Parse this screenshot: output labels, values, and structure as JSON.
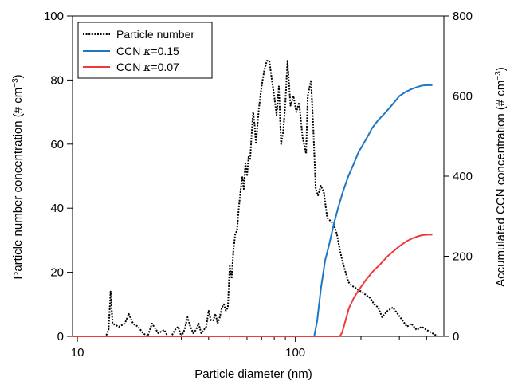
{
  "chart_data": {
    "type": "line",
    "title": "",
    "xlabel": "Particle diameter (nm)",
    "ylabel_left": "Particle number concentration (# cm⁻³)",
    "ylabel_right": "Accumulated CCN concentration (# cm⁻³)",
    "xscale": "log",
    "xlim": [
      9.5,
      480
    ],
    "ylim_left": [
      0,
      100
    ],
    "ylim_right": [
      0,
      800
    ],
    "xticks": [
      10,
      100
    ],
    "xtick_labels": [
      "10",
      "100"
    ],
    "yticks_left": [
      0,
      20,
      40,
      60,
      80,
      100
    ],
    "ytick_labels_left": [
      "0",
      "20",
      "40",
      "60",
      "80",
      "100"
    ],
    "yticks_right": [
      0,
      200,
      400,
      600,
      800
    ],
    "ytick_labels_right": [
      "0",
      "200",
      "400",
      "600",
      "800"
    ],
    "grid": false,
    "legend_position": "top-left",
    "series": [
      {
        "name": "Particle number",
        "axis": "left",
        "color": "#000000",
        "style": "dotted",
        "points": [
          [
            9.5,
            0
          ],
          [
            13.5,
            0
          ],
          [
            13.9,
            2
          ],
          [
            14.2,
            14
          ],
          [
            14.5,
            4
          ],
          [
            15.5,
            3
          ],
          [
            16.5,
            4
          ],
          [
            17.2,
            7
          ],
          [
            18,
            4
          ],
          [
            19,
            3
          ],
          [
            20,
            1
          ],
          [
            21,
            0
          ],
          [
            22,
            4
          ],
          [
            23.5,
            1
          ],
          [
            25,
            2
          ],
          [
            26,
            0
          ],
          [
            27,
            0
          ],
          [
            28,
            2
          ],
          [
            29,
            3
          ],
          [
            30,
            0
          ],
          [
            31,
            2
          ],
          [
            32,
            6
          ],
          [
            33,
            3
          ],
          [
            34,
            1
          ],
          [
            35,
            2
          ],
          [
            36,
            4
          ],
          [
            37,
            1
          ],
          [
            38,
            2
          ],
          [
            39,
            3
          ],
          [
            40,
            8
          ],
          [
            41,
            5
          ],
          [
            42,
            5
          ],
          [
            43,
            7
          ],
          [
            44,
            4
          ],
          [
            45,
            6
          ],
          [
            46,
            9
          ],
          [
            47,
            10
          ],
          [
            48,
            8
          ],
          [
            49,
            9
          ],
          [
            50,
            22
          ],
          [
            51,
            18
          ],
          [
            52,
            27
          ],
          [
            53,
            32
          ],
          [
            54,
            33
          ],
          [
            55,
            40
          ],
          [
            56,
            45
          ],
          [
            57,
            50
          ],
          [
            58,
            46
          ],
          [
            59,
            54
          ],
          [
            60,
            50
          ],
          [
            61,
            56
          ],
          [
            62,
            55
          ],
          [
            63,
            63
          ],
          [
            64,
            70
          ],
          [
            65,
            66
          ],
          [
            66,
            60
          ],
          [
            67,
            66
          ],
          [
            68,
            71
          ],
          [
            70,
            78
          ],
          [
            72,
            83
          ],
          [
            74,
            86
          ],
          [
            76,
            86
          ],
          [
            78,
            80
          ],
          [
            80,
            75
          ],
          [
            82,
            69
          ],
          [
            84,
            78
          ],
          [
            86,
            60
          ],
          [
            88,
            64
          ],
          [
            90,
            73
          ],
          [
            92,
            86
          ],
          [
            95,
            72
          ],
          [
            98,
            75
          ],
          [
            101,
            70
          ],
          [
            104,
            73
          ],
          [
            108,
            62
          ],
          [
            112,
            57
          ],
          [
            114,
            75
          ],
          [
            118,
            80
          ],
          [
            121,
            64
          ],
          [
            124,
            46
          ],
          [
            127,
            44
          ],
          [
            131,
            47
          ],
          [
            135,
            45
          ],
          [
            140,
            37
          ],
          [
            145,
            36
          ],
          [
            150,
            35
          ],
          [
            155,
            32
          ],
          [
            160,
            27
          ],
          [
            165,
            23
          ],
          [
            170,
            20
          ],
          [
            175,
            17
          ],
          [
            180,
            16
          ],
          [
            190,
            15
          ],
          [
            200,
            14
          ],
          [
            210,
            13
          ],
          [
            220,
            12
          ],
          [
            230,
            10
          ],
          [
            240,
            9
          ],
          [
            250,
            6
          ],
          [
            265,
            8
          ],
          [
            280,
            9
          ],
          [
            295,
            7
          ],
          [
            310,
            5
          ],
          [
            325,
            3
          ],
          [
            340,
            4
          ],
          [
            360,
            2
          ],
          [
            380,
            3
          ],
          [
            400,
            2
          ],
          [
            425,
            1
          ],
          [
            450,
            0
          ]
        ]
      },
      {
        "name": "CCN κ=0.15",
        "axis": "right",
        "color": "#1f77c4",
        "style": "solid",
        "points": [
          [
            9.5,
            0
          ],
          [
            122,
            0
          ],
          [
            126,
            40
          ],
          [
            131,
            120
          ],
          [
            137,
            190
          ],
          [
            143,
            230
          ],
          [
            150,
            280
          ],
          [
            157,
            320
          ],
          [
            165,
            360
          ],
          [
            175,
            400
          ],
          [
            185,
            430
          ],
          [
            195,
            460
          ],
          [
            205,
            480
          ],
          [
            215,
            500
          ],
          [
            225,
            520
          ],
          [
            240,
            540
          ],
          [
            255,
            555
          ],
          [
            270,
            570
          ],
          [
            285,
            585
          ],
          [
            300,
            600
          ],
          [
            320,
            610
          ],
          [
            340,
            617
          ],
          [
            360,
            622
          ],
          [
            380,
            626
          ],
          [
            400,
            627
          ],
          [
            425,
            627
          ]
        ]
      },
      {
        "name": "CCN κ=0.07",
        "axis": "right",
        "color": "#ee3a3a",
        "style": "solid",
        "points": [
          [
            9.5,
            0
          ],
          [
            160,
            0
          ],
          [
            164,
            10
          ],
          [
            170,
            40
          ],
          [
            176,
            70
          ],
          [
            185,
            95
          ],
          [
            195,
            115
          ],
          [
            210,
            140
          ],
          [
            225,
            160
          ],
          [
            245,
            180
          ],
          [
            265,
            200
          ],
          [
            285,
            215
          ],
          [
            305,
            228
          ],
          [
            325,
            238
          ],
          [
            345,
            245
          ],
          [
            365,
            250
          ],
          [
            385,
            253
          ],
          [
            405,
            254
          ],
          [
            425,
            254
          ]
        ]
      }
    ]
  },
  "legend": {
    "items": [
      {
        "name": "Particle number",
        "prefix": "",
        "suffix": ""
      },
      {
        "name": "CCN κ=0.15",
        "prefix": "CCN ",
        "suffix": "=0.15"
      },
      {
        "name": "CCN κ=0.07",
        "prefix": "CCN ",
        "suffix": "=0.07"
      }
    ],
    "kappa_symbol": "κ"
  },
  "axes": {
    "xlabel": "Particle diameter (nm)",
    "ylabel_left_main": "Particle number concentration (# cm",
    "ylabel_right_main": "Accumulated CCN concentration (# cm",
    "ylabel_sup": "−3",
    "ylabel_close": ")"
  }
}
